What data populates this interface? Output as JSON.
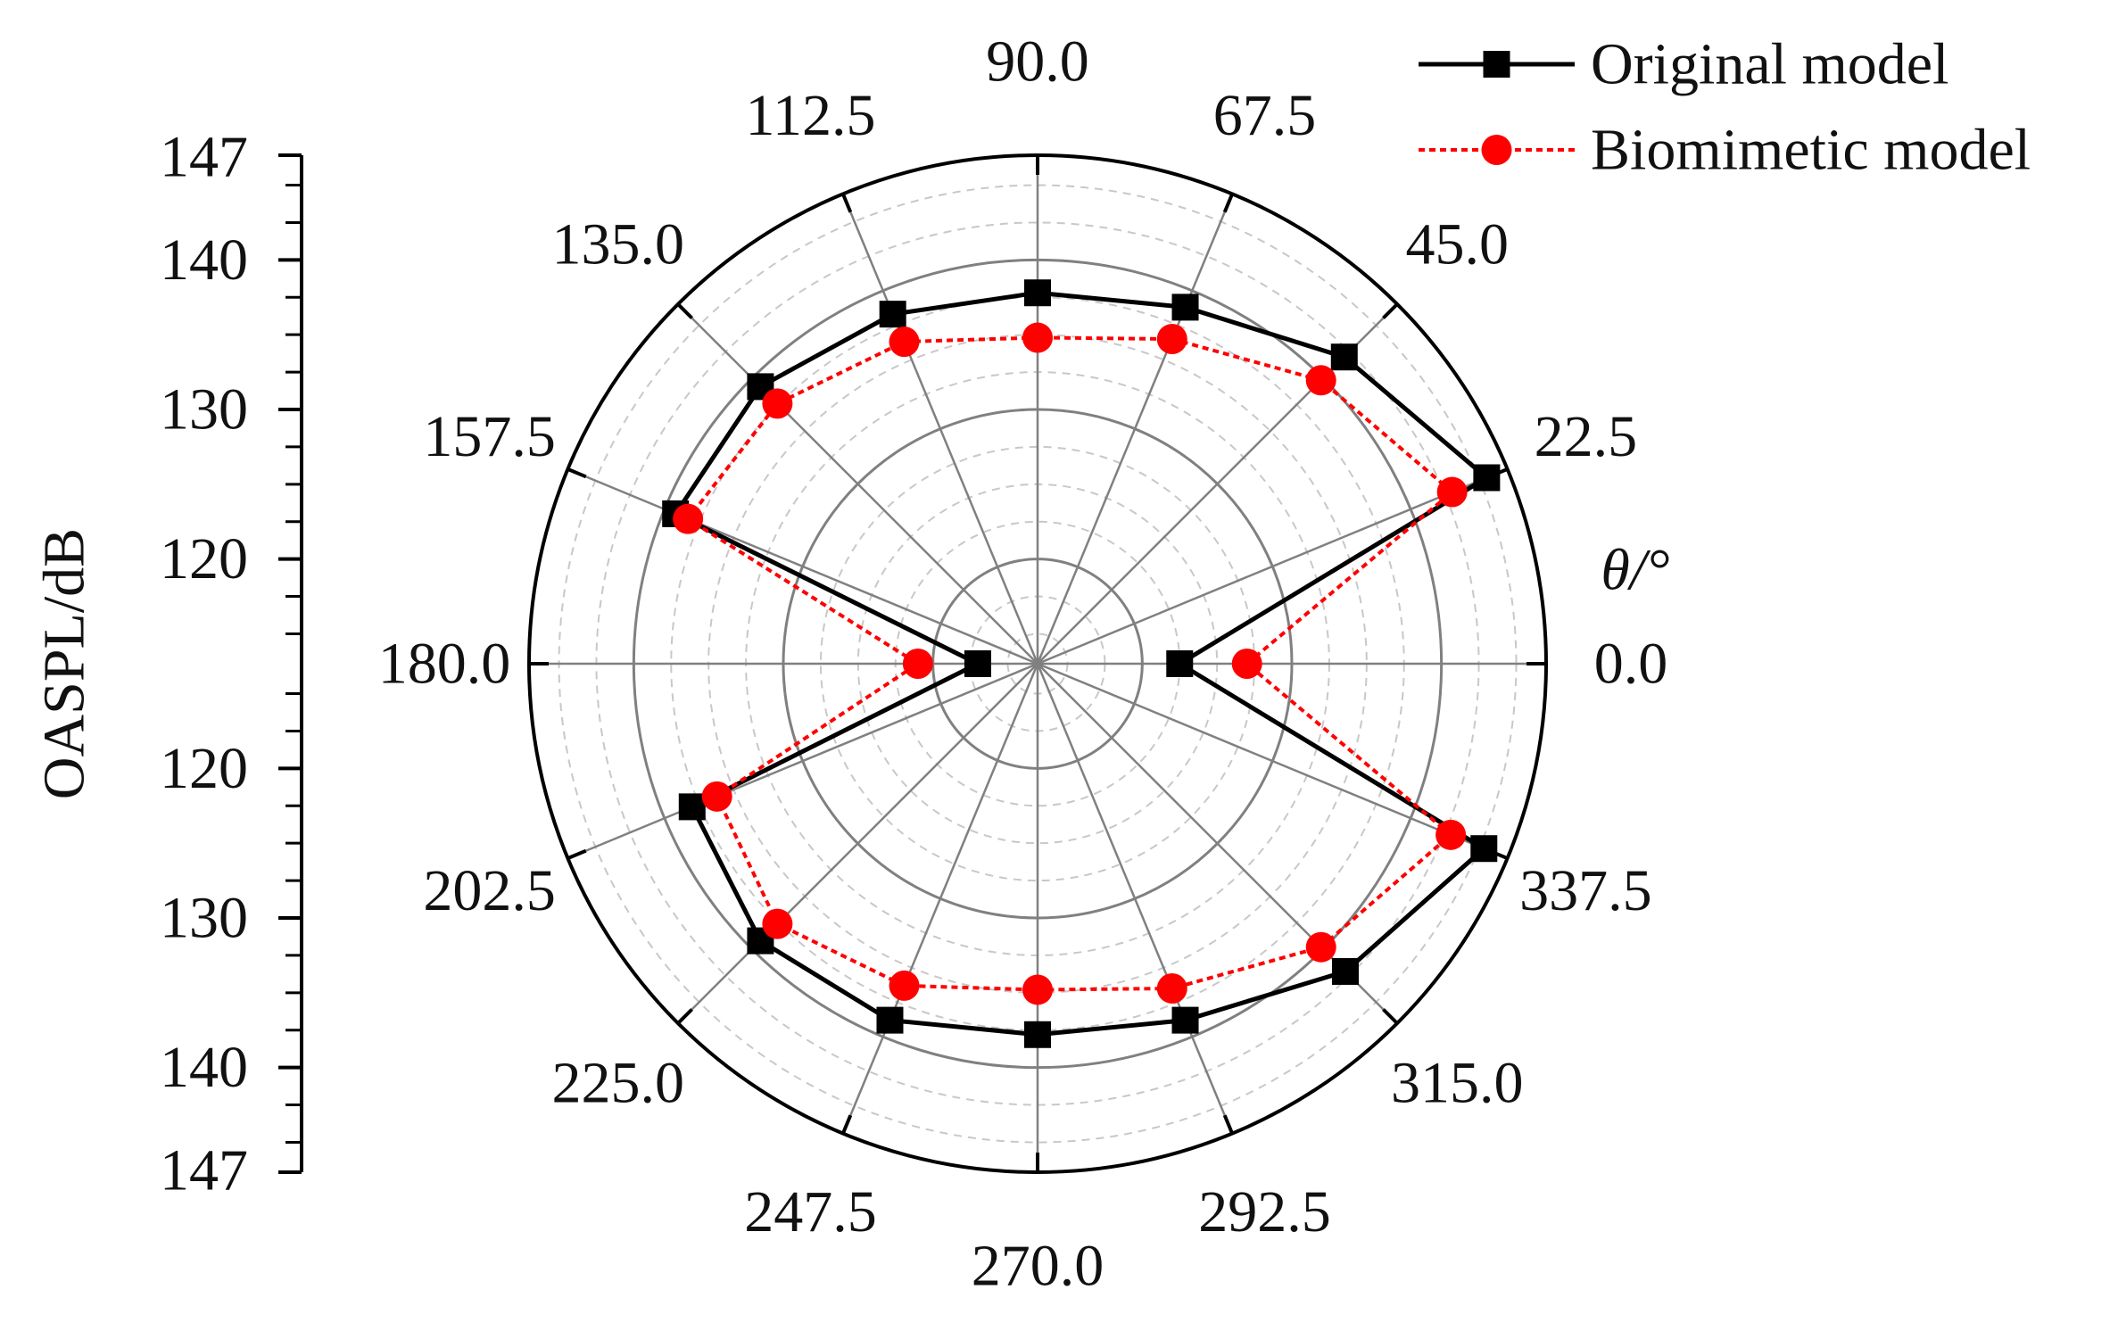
{
  "chart_data": {
    "type": "line",
    "subtype": "polar",
    "angular_axis": {
      "title": "θ/°",
      "unit": "°",
      "tick_labels": [
        "0.0",
        "22.5",
        "45.0",
        "67.5",
        "90.0",
        "112.5",
        "135.0",
        "157.5",
        "180.0",
        "202.5",
        "225.0",
        "247.5",
        "270.0",
        "292.5",
        "315.0",
        "337.5"
      ],
      "direction": "counterclockwise",
      "zero_at": "right"
    },
    "radial_axis": {
      "title": "OASPL/dB",
      "range": [
        113,
        147
      ],
      "tick_labels": [
        "120",
        "130",
        "140",
        "147"
      ],
      "tick_values": [
        120,
        130,
        140,
        147
      ]
    },
    "theta": [
      0,
      22.5,
      45,
      67.5,
      90,
      112.5,
      135,
      157.5,
      180,
      202.5,
      225,
      247.5,
      270,
      292.5,
      315,
      337.5
    ],
    "series": [
      {
        "name": "Original model",
        "color": "#000000",
        "line_style": "solid",
        "marker": "square",
        "values": [
          122.5,
          145.5,
          142.0,
          138.8,
          137.8,
          138.3,
          139.2,
          139.2,
          117.0,
          138.0,
          139.2,
          138.8,
          137.8,
          138.8,
          142.1,
          145.3
        ]
      },
      {
        "name": "Biomimetic model",
        "color": "#ff0000",
        "line_style": "dotted",
        "marker": "circle",
        "values": [
          127.0,
          143.0,
          139.8,
          136.5,
          134.8,
          136.3,
          137.6,
          138.3,
          121.0,
          136.2,
          137.6,
          136.3,
          134.8,
          136.5,
          139.8,
          142.9
        ]
      }
    ],
    "grid": true,
    "legend": {
      "placement": "top-right"
    }
  }
}
